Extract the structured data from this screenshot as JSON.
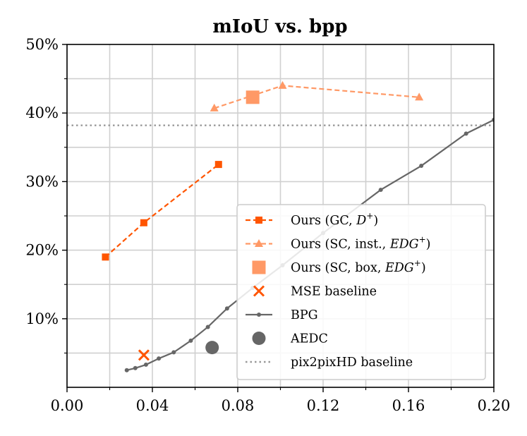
{
  "chart_data": {
    "type": "line",
    "title": "mIoU vs. bpp",
    "xlabel": "",
    "ylabel": "",
    "xlim": [
      0.0,
      0.2
    ],
    "ylim": [
      0,
      50
    ],
    "xticks": [
      0.0,
      0.04,
      0.08,
      0.12,
      0.16,
      0.2
    ],
    "xtick_labels": [
      "0.00",
      "0.04",
      "0.08",
      "0.12",
      "0.16",
      "0.20"
    ],
    "yticks": [
      10,
      20,
      30,
      40,
      50
    ],
    "ytick_labels": [
      "10%",
      "20%",
      "30%",
      "40%",
      "50%"
    ],
    "grid": true,
    "legend_position": "lower-right",
    "series": [
      {
        "name": "Ours (GC, D+)",
        "label_main": "Ours (GC, ",
        "label_math": "D",
        "label_sup": "+",
        "label_end": ")",
        "color": "#ff5500",
        "linestyle": "dashed",
        "marker": "square",
        "x": [
          0.018,
          0.036,
          0.071
        ],
        "y": [
          19.0,
          24.0,
          32.5
        ]
      },
      {
        "name": "Ours (SC, inst., EDG+)",
        "label_main": "Ours (SC, inst., ",
        "label_math": "EDG",
        "label_sup": "+",
        "label_end": ")",
        "color": "#ff9966",
        "linestyle": "dashed",
        "marker": "triangle",
        "x": [
          0.069,
          0.101,
          0.165
        ],
        "y": [
          40.7,
          44.0,
          42.3
        ]
      },
      {
        "name": "Ours (SC, box, EDG+)",
        "label_main": "Ours (SC, box, ",
        "label_math": "EDG",
        "label_sup": "+",
        "label_end": ")",
        "color": "#ff9966",
        "linestyle": "none",
        "marker": "big-square",
        "x": [
          0.087
        ],
        "y": [
          42.3
        ]
      },
      {
        "name": "MSE baseline",
        "label_main": "MSE baseline",
        "color": "#ff5500",
        "linestyle": "none",
        "marker": "x",
        "x": [
          0.036
        ],
        "y": [
          4.7
        ]
      },
      {
        "name": "BPG",
        "label_main": "BPG",
        "color": "#666666",
        "linestyle": "solid",
        "marker": "dot",
        "x": [
          0.028,
          0.032,
          0.037,
          0.043,
          0.05,
          0.058,
          0.066,
          0.075,
          0.087,
          0.101,
          0.12,
          0.147,
          0.166,
          0.187,
          0.2
        ],
        "y": [
          2.5,
          2.8,
          3.3,
          4.2,
          5.1,
          6.8,
          8.8,
          11.5,
          14.5,
          17.8,
          22.5,
          28.8,
          32.3,
          37.0,
          39.0
        ]
      },
      {
        "name": "AEDC",
        "label_main": "AEDC",
        "color": "#666666",
        "linestyle": "none",
        "marker": "circle",
        "x": [
          0.068
        ],
        "y": [
          5.8
        ]
      },
      {
        "name": "pix2pixHD baseline",
        "label_main": "pix2pixHD baseline",
        "color": "#999999",
        "linestyle": "dotted",
        "marker": "none",
        "hline": 38.2
      }
    ]
  }
}
